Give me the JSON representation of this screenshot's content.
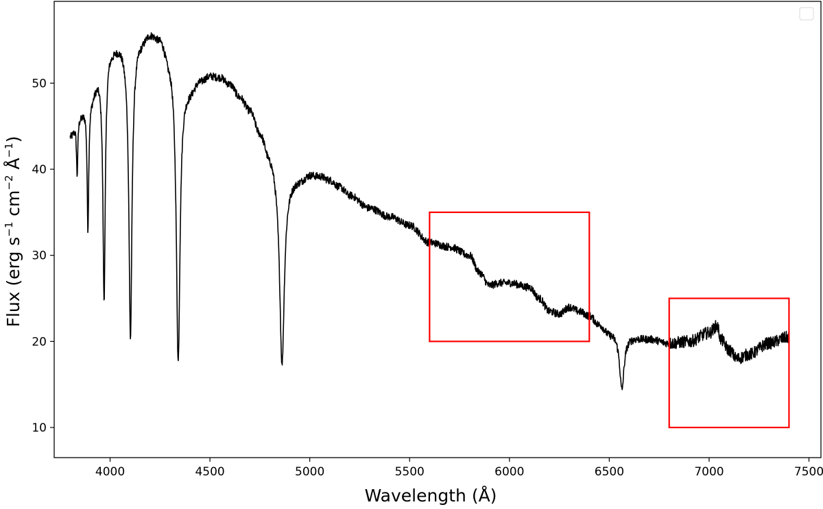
{
  "chart_data": {
    "type": "line",
    "xlabel": "Wavelength (Å)",
    "ylabel_parts": {
      "flux": "Flux (erg s",
      "exp1": "−1",
      "cm": " cm",
      "exp2": "−2",
      "angstrom": " Å",
      "exp3": "−1",
      "close": ")"
    },
    "xlim": [
      3720,
      7560
    ],
    "ylim": [
      6.5,
      59.5
    ],
    "xticks": [
      4000,
      4500,
      5000,
      5500,
      6000,
      6500,
      7000,
      7500
    ],
    "yticks": [
      10,
      20,
      30,
      40,
      50
    ],
    "legend": {
      "location": "upper-right",
      "entries": []
    },
    "grid": false,
    "series": [
      {
        "color": "#000000",
        "continuum": [
          [
            3800,
            44.0
          ],
          [
            3850,
            46.5
          ],
          [
            3900,
            48.5
          ],
          [
            3950,
            51.0
          ],
          [
            4000,
            54.0
          ],
          [
            4050,
            54.5
          ],
          [
            4100,
            53.0
          ],
          [
            4150,
            55.0
          ],
          [
            4200,
            56.0
          ],
          [
            4250,
            55.5
          ],
          [
            4300,
            53.0
          ],
          [
            4350,
            50.0
          ],
          [
            4400,
            49.5
          ],
          [
            4450,
            50.5
          ],
          [
            4500,
            51.0
          ],
          [
            4550,
            50.8
          ],
          [
            4600,
            50.0
          ],
          [
            4650,
            48.5
          ],
          [
            4700,
            47.0
          ],
          [
            4750,
            44.5
          ],
          [
            4800,
            42.0
          ],
          [
            4850,
            40.0
          ],
          [
            4900,
            39.0
          ],
          [
            4950,
            39.0
          ],
          [
            5000,
            39.5
          ],
          [
            5050,
            39.3
          ],
          [
            5100,
            38.8
          ],
          [
            5150,
            38.0
          ],
          [
            5200,
            37.0
          ],
          [
            5300,
            35.5
          ],
          [
            5400,
            34.5
          ],
          [
            5500,
            33.5
          ],
          [
            5600,
            31.5
          ],
          [
            5700,
            31.0
          ],
          [
            5800,
            30.0
          ],
          [
            5850,
            28.0
          ],
          [
            5900,
            26.5
          ],
          [
            5950,
            26.8
          ],
          [
            6000,
            26.8
          ],
          [
            6100,
            26.3
          ],
          [
            6150,
            25.0
          ],
          [
            6200,
            23.5
          ],
          [
            6250,
            23.2
          ],
          [
            6300,
            24.0
          ],
          [
            6350,
            23.5
          ],
          [
            6400,
            23.0
          ],
          [
            6450,
            22.0
          ],
          [
            6500,
            21.0
          ],
          [
            6600,
            20.5
          ],
          [
            6700,
            20.3
          ],
          [
            6800,
            19.8
          ],
          [
            6900,
            20.0
          ],
          [
            7000,
            21.0
          ],
          [
            7040,
            21.8
          ],
          [
            7060,
            20.2
          ],
          [
            7100,
            19.0
          ],
          [
            7140,
            18.0
          ],
          [
            7200,
            18.5
          ],
          [
            7300,
            19.8
          ],
          [
            7400,
            20.5
          ]
        ],
        "absorption_lines": [
          {
            "center": 3835,
            "depth": 6.5,
            "width": 4
          },
          {
            "center": 3889,
            "depth": 15.0,
            "width": 5
          },
          {
            "center": 3970,
            "depth": 27.0,
            "width": 7
          },
          {
            "center": 4102,
            "depth": 32.5,
            "width": 9
          },
          {
            "center": 4341,
            "depth": 32.5,
            "width": 11
          },
          {
            "center": 4861,
            "depth": 22.5,
            "width": 14
          },
          {
            "center": 6563,
            "depth": 6.3,
            "width": 13
          }
        ],
        "noise_amplitude": 0.45
      }
    ],
    "highlight_boxes": [
      {
        "x": [
          5600,
          6400
        ],
        "y": [
          20,
          35
        ],
        "color": "#ff0000"
      },
      {
        "x": [
          6800,
          7400
        ],
        "y": [
          10,
          25
        ],
        "color": "#ff0000"
      }
    ]
  }
}
